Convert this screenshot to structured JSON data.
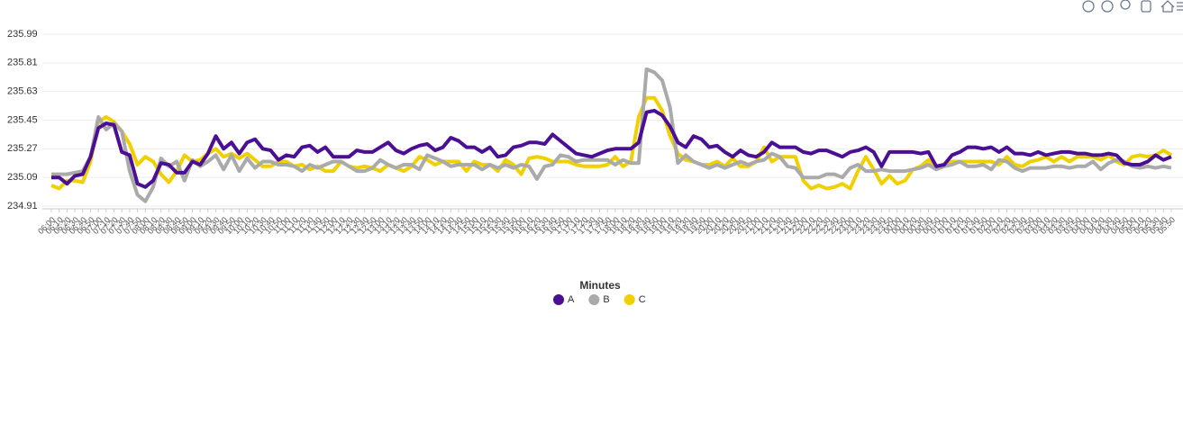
{
  "chart_data": {
    "type": "line",
    "legend_title": "Minutes",
    "categories": [
      "06:00",
      "06:10",
      "06:20",
      "06:30",
      "06:40",
      "06:50",
      "07:00",
      "07:10",
      "07:20",
      "07:30",
      "07:40",
      "07:50",
      "08:00",
      "08:10",
      "08:20",
      "08:30",
      "08:40",
      "08:50",
      "09:00",
      "09:10",
      "09:20",
      "09:30",
      "09:40",
      "09:50",
      "10:00",
      "10:10",
      "10:20",
      "10:30",
      "10:40",
      "10:50",
      "11:00",
      "11:10",
      "11:20",
      "11:30",
      "11:40",
      "11:50",
      "12:00",
      "12:10",
      "12:20",
      "12:30",
      "12:40",
      "12:50",
      "13:00",
      "13:10",
      "13:20",
      "13:30",
      "13:40",
      "13:50",
      "14:00",
      "14:10",
      "14:20",
      "14:30",
      "14:40",
      "14:50",
      "15:00",
      "15:10",
      "15:20",
      "15:30",
      "15:40",
      "15:50",
      "16:00",
      "16:10",
      "16:20",
      "16:30",
      "16:40",
      "16:50",
      "17:00",
      "17:10",
      "17:20",
      "17:30",
      "17:40",
      "17:50",
      "18:00",
      "18:10",
      "18:20",
      "18:30",
      "18:40",
      "18:50",
      "19:00",
      "19:10",
      "19:20",
      "19:30",
      "19:40",
      "19:50",
      "20:00",
      "20:10",
      "20:20",
      "20:30",
      "20:40",
      "20:50",
      "21:00",
      "21:10",
      "21:20",
      "21:30",
      "21:40",
      "21:50",
      "22:00",
      "22:10",
      "22:20",
      "22:30",
      "22:40",
      "22:50",
      "23:00",
      "23:10",
      "23:20",
      "23:30",
      "23:40",
      "23:50",
      "00:00",
      "00:10",
      "00:20",
      "00:30",
      "00:40",
      "00:50",
      "01:00",
      "01:10",
      "01:20",
      "01:30",
      "01:40",
      "01:50",
      "02:00",
      "02:10",
      "02:20",
      "02:30",
      "02:40",
      "02:50",
      "03:00",
      "03:10",
      "03:20",
      "03:30",
      "03:40",
      "03:50",
      "04:00",
      "04:10",
      "04:20",
      "04:30",
      "04:40",
      "04:50",
      "05:00",
      "05:10",
      "05:20",
      "05:30",
      "05:40",
      "05:50"
    ],
    "series": [
      {
        "name": "A",
        "color": "#4b0f94",
        "values": [
          235.09,
          235.09,
          235.05,
          235.1,
          235.11,
          235.22,
          235.4,
          235.43,
          235.42,
          235.25,
          235.23,
          235.05,
          235.03,
          235.07,
          235.18,
          235.17,
          235.12,
          235.12,
          235.19,
          235.17,
          235.24,
          235.35,
          235.27,
          235.31,
          235.24,
          235.31,
          235.33,
          235.27,
          235.26,
          235.2,
          235.23,
          235.22,
          235.28,
          235.29,
          235.25,
          235.28,
          235.22,
          235.22,
          235.22,
          235.26,
          235.25,
          235.25,
          235.28,
          235.31,
          235.26,
          235.24,
          235.27,
          235.29,
          235.3,
          235.26,
          235.28,
          235.34,
          235.32,
          235.28,
          235.28,
          235.25,
          235.28,
          235.22,
          235.23,
          235.28,
          235.29,
          235.31,
          235.31,
          235.3,
          235.36,
          235.32,
          235.28,
          235.24,
          235.23,
          235.22,
          235.24,
          235.26,
          235.27,
          235.27,
          235.27,
          235.31,
          235.5,
          235.51,
          235.48,
          235.41,
          235.31,
          235.28,
          235.35,
          235.33,
          235.28,
          235.29,
          235.25,
          235.22,
          235.26,
          235.23,
          235.22,
          235.25,
          235.31,
          235.28,
          235.28,
          235.28,
          235.25,
          235.24,
          235.26,
          235.26,
          235.24,
          235.22,
          235.25,
          235.26,
          235.28,
          235.25,
          235.16,
          235.25,
          235.25,
          235.25,
          235.25,
          235.24,
          235.25,
          235.16,
          235.17,
          235.23,
          235.25,
          235.28,
          235.28,
          235.27,
          235.28,
          235.25,
          235.28,
          235.24,
          235.24,
          235.23,
          235.25,
          235.23,
          235.24,
          235.25,
          235.25,
          235.24,
          235.24,
          235.23,
          235.23,
          235.24,
          235.23,
          235.18,
          235.17,
          235.17,
          235.19,
          235.23,
          235.2,
          235.22
        ]
      },
      {
        "name": "B",
        "color": "#aaaaaa",
        "values": [
          235.11,
          235.11,
          235.11,
          235.12,
          235.13,
          235.22,
          235.47,
          235.39,
          235.43,
          235.38,
          235.13,
          234.98,
          234.94,
          235.03,
          235.21,
          235.16,
          235.19,
          235.07,
          235.2,
          235.16,
          235.19,
          235.23,
          235.14,
          235.23,
          235.13,
          235.21,
          235.15,
          235.19,
          235.19,
          235.17,
          235.17,
          235.16,
          235.13,
          235.17,
          235.15,
          235.17,
          235.19,
          235.19,
          235.16,
          235.13,
          235.13,
          235.15,
          235.2,
          235.17,
          235.15,
          235.17,
          235.17,
          235.14,
          235.23,
          235.21,
          235.19,
          235.16,
          235.17,
          235.17,
          235.17,
          235.14,
          235.17,
          235.15,
          235.17,
          235.15,
          235.17,
          235.16,
          235.08,
          235.16,
          235.17,
          235.23,
          235.22,
          235.19,
          235.2,
          235.2,
          235.2,
          235.2,
          235.17,
          235.2,
          235.18,
          235.18,
          235.77,
          235.75,
          235.7,
          235.53,
          235.18,
          235.23,
          235.19,
          235.17,
          235.15,
          235.17,
          235.15,
          235.17,
          235.19,
          235.17,
          235.19,
          235.2,
          235.24,
          235.22,
          235.16,
          235.15,
          235.09,
          235.09,
          235.09,
          235.11,
          235.11,
          235.09,
          235.15,
          235.17,
          235.13,
          235.13,
          235.14,
          235.13,
          235.13,
          235.13,
          235.14,
          235.15,
          235.17,
          235.14,
          235.16,
          235.17,
          235.19,
          235.16,
          235.16,
          235.17,
          235.14,
          235.2,
          235.19,
          235.15,
          235.13,
          235.15,
          235.15,
          235.15,
          235.16,
          235.16,
          235.15,
          235.16,
          235.16,
          235.19,
          235.14,
          235.18,
          235.2,
          235.19,
          235.16,
          235.15,
          235.16,
          235.15,
          235.16,
          235.15
        ]
      },
      {
        "name": "C",
        "color": "#f0d000",
        "values": [
          235.04,
          235.02,
          235.07,
          235.07,
          235.06,
          235.19,
          235.44,
          235.47,
          235.44,
          235.38,
          235.3,
          235.17,
          235.22,
          235.19,
          235.11,
          235.06,
          235.13,
          235.23,
          235.19,
          235.2,
          235.24,
          235.27,
          235.22,
          235.24,
          235.21,
          235.24,
          235.2,
          235.16,
          235.16,
          235.19,
          235.19,
          235.16,
          235.17,
          235.14,
          235.16,
          235.13,
          235.13,
          235.19,
          235.16,
          235.15,
          235.16,
          235.15,
          235.13,
          235.17,
          235.15,
          235.13,
          235.16,
          235.22,
          235.2,
          235.17,
          235.19,
          235.19,
          235.19,
          235.13,
          235.19,
          235.17,
          235.17,
          235.13,
          235.2,
          235.17,
          235.11,
          235.21,
          235.22,
          235.21,
          235.19,
          235.19,
          235.19,
          235.17,
          235.16,
          235.16,
          235.16,
          235.17,
          235.22,
          235.16,
          235.19,
          235.47,
          235.59,
          235.59,
          235.51,
          235.35,
          235.24,
          235.2,
          235.19,
          235.17,
          235.17,
          235.19,
          235.16,
          235.21,
          235.16,
          235.16,
          235.19,
          235.28,
          235.19,
          235.22,
          235.22,
          235.22,
          235.07,
          235.02,
          235.04,
          235.02,
          235.03,
          235.05,
          235.02,
          235.13,
          235.22,
          235.14,
          235.05,
          235.1,
          235.05,
          235.07,
          235.14,
          235.16,
          235.2,
          235.16,
          235.16,
          235.19,
          235.19,
          235.19,
          235.19,
          235.19,
          235.19,
          235.17,
          235.22,
          235.17,
          235.16,
          235.19,
          235.2,
          235.22,
          235.19,
          235.22,
          235.19,
          235.22,
          235.22,
          235.22,
          235.2,
          235.23,
          235.19,
          235.17,
          235.22,
          235.23,
          235.22,
          235.23,
          235.26,
          235.23
        ]
      }
    ],
    "ylim": [
      234.91,
      235.99
    ],
    "yticks": [
      234.91,
      235.09,
      235.27,
      235.45,
      235.63,
      235.81,
      235.99
    ],
    "grid": true
  }
}
